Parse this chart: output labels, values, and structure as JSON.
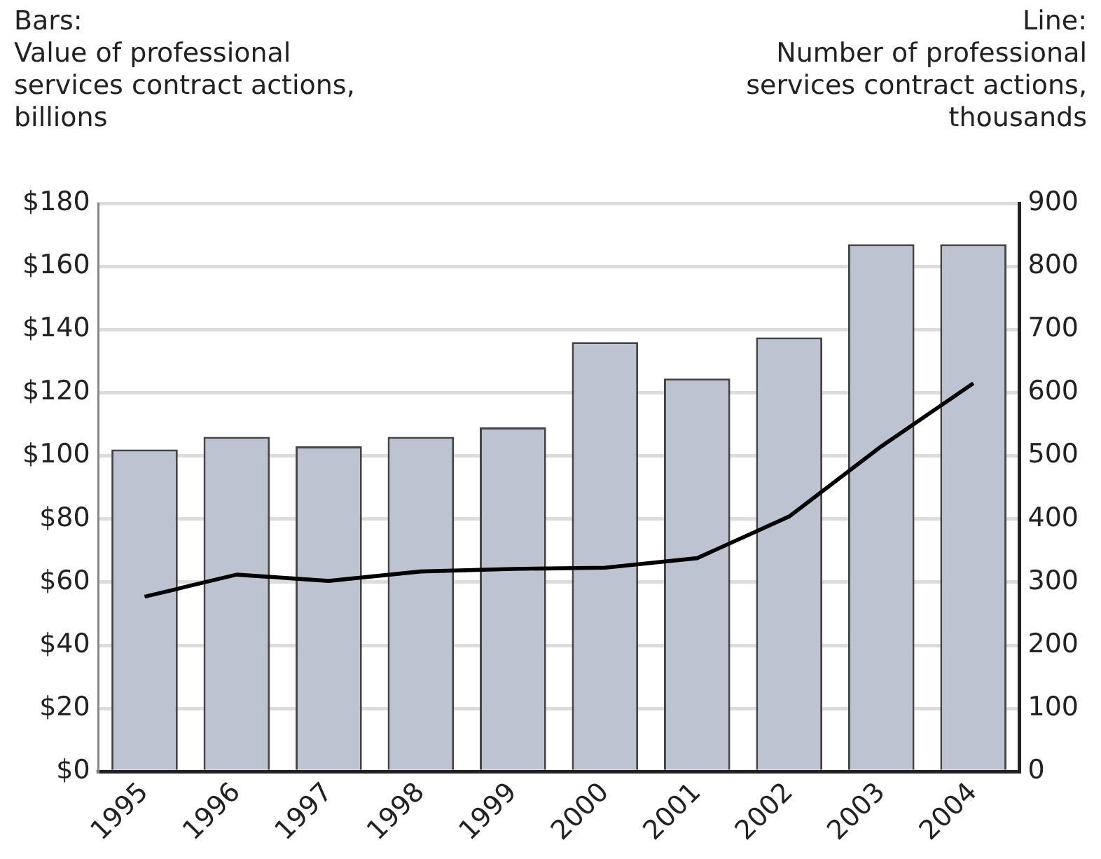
{
  "chart_data": {
    "type": "bar",
    "ylabel": "Bars:\nValue of professional\nservices contract actions,\nbillions",
    "y2label": "Line:\nNumber of professional\nservices contract actions,\nthousands",
    "categories": [
      "1995",
      "1996",
      "1997",
      "1998",
      "1999",
      "2000",
      "2001",
      "2002",
      "2003",
      "2004"
    ],
    "series": [
      {
        "color": "#bdc3d0",
        "values": [
          102,
          106,
          103,
          106,
          109,
          136,
          124.5,
          137.5,
          167,
          167
        ]
      },
      {
        "type": "line",
        "axis": "y2",
        "color": "#000000",
        "values": [
          277,
          312,
          302,
          317,
          321,
          323,
          338,
          404,
          515,
          615
        ]
      }
    ],
    "ylim": [
      0,
      180
    ],
    "yticks": [
      {
        "value": 0,
        "label": "$0"
      },
      {
        "value": 20,
        "label": "$20"
      },
      {
        "value": 40,
        "label": "$40"
      },
      {
        "value": 60,
        "label": "$60"
      },
      {
        "value": 80,
        "label": "$80"
      },
      {
        "value": 100,
        "label": "$100"
      },
      {
        "value": 120,
        "label": "$120"
      },
      {
        "value": 140,
        "label": "$140"
      },
      {
        "value": 160,
        "label": "$160"
      },
      {
        "value": 180,
        "label": "$180"
      }
    ],
    "y2lim": [
      0,
      900
    ],
    "y2ticks": [
      0,
      100,
      200,
      300,
      400,
      500,
      600,
      700,
      800,
      900
    ],
    "grid": "y",
    "legend": false,
    "marker": "none",
    "line_style": "solid"
  }
}
